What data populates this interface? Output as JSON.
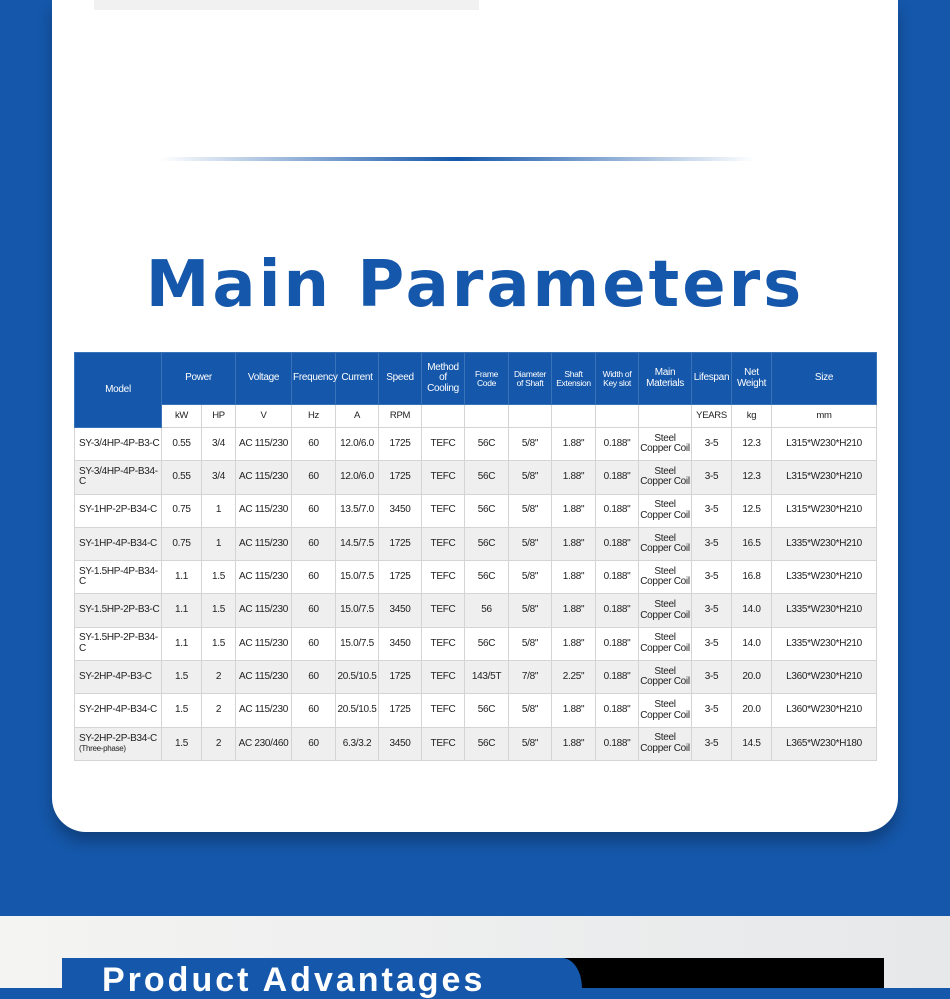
{
  "title": "Main Parameters",
  "bottom_heading": "Product Advantages",
  "colors": {
    "brand": "#1557aa",
    "row_alt": "#efefef"
  },
  "table": {
    "headers": [
      "Model",
      "Power",
      "Voltage",
      "Frequency",
      "Current",
      "Speed",
      "Method of Cooling",
      "Frame Code",
      "Diameter of Shaft",
      "Shaft Extension",
      "Width of Key slot",
      "Main Materials",
      "Lifespan",
      "Net Weight",
      "Size"
    ],
    "units": [
      "kW",
      "HP",
      "V",
      "Hz",
      "A",
      "RPM",
      "",
      "",
      "",
      "",
      "",
      "",
      "YEARS",
      "kg",
      "mm"
    ],
    "rows": [
      {
        "model": "SY-3/4HP-4P-B3-C",
        "note": "",
        "cells": [
          "0.55",
          "3/4",
          "AC 115/230",
          "60",
          "12.0/6.0",
          "1725",
          "TEFC",
          "56C",
          "5/8\"",
          "1.88\"",
          "0.188\"",
          "Steel Copper Coil",
          "3-5",
          "12.3",
          "L315*W230*H210"
        ]
      },
      {
        "model": "SY-3/4HP-4P-B34-C",
        "note": "",
        "cells": [
          "0.55",
          "3/4",
          "AC 115/230",
          "60",
          "12.0/6.0",
          "1725",
          "TEFC",
          "56C",
          "5/8\"",
          "1.88\"",
          "0.188\"",
          "Steel Copper Coil",
          "3-5",
          "12.3",
          "L315*W230*H210"
        ]
      },
      {
        "model": "SY-1HP-2P-B34-C",
        "note": "",
        "cells": [
          "0.75",
          "1",
          "AC 115/230",
          "60",
          "13.5/7.0",
          "3450",
          "TEFC",
          "56C",
          "5/8\"",
          "1.88\"",
          "0.188\"",
          "Steel Copper Coil",
          "3-5",
          "12.5",
          "L315*W230*H210"
        ]
      },
      {
        "model": "SY-1HP-4P-B34-C",
        "note": "",
        "cells": [
          "0.75",
          "1",
          "AC 115/230",
          "60",
          "14.5/7.5",
          "1725",
          "TEFC",
          "56C",
          "5/8\"",
          "1.88\"",
          "0.188\"",
          "Steel Copper Coil",
          "3-5",
          "16.5",
          "L335*W230*H210"
        ]
      },
      {
        "model": "SY-1.5HP-4P-B34-C",
        "note": "",
        "cells": [
          "1.1",
          "1.5",
          "AC 115/230",
          "60",
          "15.0/7.5",
          "1725",
          "TEFC",
          "56C",
          "5/8\"",
          "1.88\"",
          "0.188\"",
          "Steel Copper Coil",
          "3-5",
          "16.8",
          "L335*W230*H210"
        ]
      },
      {
        "model": "SY-1.5HP-2P-B3-C",
        "note": "",
        "cells": [
          "1.1",
          "1.5",
          "AC 115/230",
          "60",
          "15.0/7.5",
          "3450",
          "TEFC",
          "56",
          "5/8\"",
          "1.88\"",
          "0.188\"",
          "Steel Copper Coil",
          "3-5",
          "14.0",
          "L335*W230*H210"
        ]
      },
      {
        "model": "SY-1.5HP-2P-B34-C",
        "note": "",
        "cells": [
          "1.1",
          "1.5",
          "AC 115/230",
          "60",
          "15.0/7.5",
          "3450",
          "TEFC",
          "56C",
          "5/8\"",
          "1.88\"",
          "0.188\"",
          "Steel Copper Coil",
          "3-5",
          "14.0",
          "L335*W230*H210"
        ]
      },
      {
        "model": "SY-2HP-4P-B3-C",
        "note": "",
        "cells": [
          "1.5",
          "2",
          "AC 115/230",
          "60",
          "20.5/10.5",
          "1725",
          "TEFC",
          "143/5T",
          "7/8\"",
          "2.25\"",
          "0.188\"",
          "Steel Copper Coil",
          "3-5",
          "20.0",
          "L360*W230*H210"
        ]
      },
      {
        "model": "SY-2HP-4P-B34-C",
        "note": "",
        "cells": [
          "1.5",
          "2",
          "AC 115/230",
          "60",
          "20.5/10.5",
          "1725",
          "TEFC",
          "56C",
          "5/8\"",
          "1.88\"",
          "0.188\"",
          "Steel Copper Coil",
          "3-5",
          "20.0",
          "L360*W230*H210"
        ]
      },
      {
        "model": "SY-2HP-2P-B34-C",
        "note": "(Three-phase)",
        "cells": [
          "1.5",
          "2",
          "AC 230/460",
          "60",
          "6.3/3.2",
          "3450",
          "TEFC",
          "56C",
          "5/8\"",
          "1.88\"",
          "0.188\"",
          "Steel Copper Coil",
          "3-5",
          "14.5",
          "L365*W230*H180"
        ]
      }
    ]
  }
}
